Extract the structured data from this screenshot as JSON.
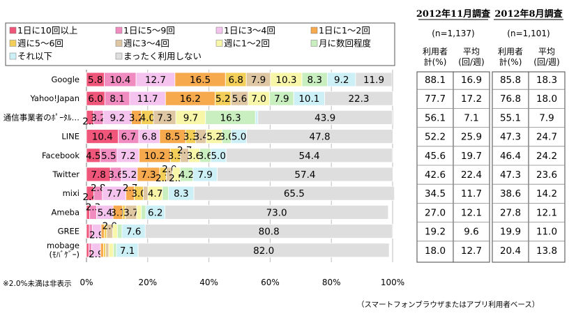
{
  "chart_data": {
    "type": "bar",
    "orientation": "horizontal",
    "stacked": true,
    "xlim": [
      0,
      100
    ],
    "x_ticks": [
      "0%",
      "20%",
      "40%",
      "60%",
      "80%",
      "100%"
    ],
    "grid": true,
    "legend_position": "top-left",
    "categories": [
      "Google",
      "Yahoo!Japan",
      "通信事業者のﾎﾟｰﾀﾙ…",
      "LINE",
      "Facebook",
      "Twitter",
      "mixi",
      "Ameba",
      "GREE",
      "mobage\n(ﾓﾊﾞｹﾞｰ)"
    ],
    "series": [
      {
        "name": "1日に10回以上",
        "color": "#f0557a",
        "values": [
          5.8,
          6.0,
          2.3,
          10.4,
          4.5,
          7.8,
          2.4,
          1.0,
          0.9,
          0.8
        ],
        "labels": [
          "5.8",
          "6.0",
          "2.3",
          "10.4",
          "4.5",
          "7.8",
          "2.4",
          "",
          "",
          ""
        ]
      },
      {
        "name": "1日に5～9回",
        "color": "#f08cc0",
        "values": [
          10.4,
          8.1,
          3.2,
          6.7,
          5.5,
          3.6,
          2.8,
          2.3,
          1.0,
          0.9
        ],
        "labels": [
          "10.4",
          "8.1",
          "3.2",
          "6.7",
          "5.5",
          "3.6",
          "2.8",
          "2.3",
          "",
          ""
        ]
      },
      {
        "name": "1日に3～4回",
        "color": "#f4c4ee",
        "values": [
          12.7,
          11.7,
          9.2,
          6.8,
          7.2,
          5.2,
          7.7,
          5.4,
          2.9,
          2.9
        ],
        "labels": [
          "12.7",
          "11.7",
          "9.2",
          "6.8",
          "7.2",
          "5.2",
          "7.7",
          "5.4",
          "2.9",
          "2.9"
        ]
      },
      {
        "name": "1日に1～2回",
        "color": "#f7a94e",
        "values": [
          16.5,
          16.2,
          3.2,
          8.5,
          10.2,
          7.3,
          2.7,
          3.1,
          1.0,
          1.0
        ],
        "labels": [
          "16.5",
          "16.2",
          "3.2",
          "8.5",
          "10.2",
          "7.3",
          "2.7",
          "3.1",
          "",
          ""
        ]
      },
      {
        "name": "週に5～6回",
        "color": "#f3cf5a",
        "values": [
          6.8,
          5.2,
          4.0,
          3.3,
          3.3,
          2.2,
          3.0,
          0.9,
          0.8,
          0.7
        ],
        "labels": [
          "6.8",
          "5.2",
          "4.0",
          "3.3",
          "3.3",
          "2.2",
          "3.0",
          "",
          "",
          ""
        ]
      },
      {
        "name": "週に3～4回",
        "color": "#dfc7a4",
        "values": [
          7.9,
          5.6,
          7.3,
          3.4,
          2.7,
          2.0,
          1.5,
          3.7,
          2.0,
          1.0
        ],
        "labels": [
          "7.9",
          "5.6",
          "7.3",
          "3.4",
          "2.7",
          "2.0",
          "",
          "3.7",
          "2.0",
          ""
        ]
      },
      {
        "name": "週に1～2回",
        "color": "#f8f6a8",
        "values": [
          10.3,
          7.0,
          9.7,
          5.2,
          3.6,
          2.5,
          4.7,
          1.5,
          1.5,
          1.5
        ],
        "labels": [
          "10.3",
          "7.0",
          "9.7",
          "5.2",
          "3.6",
          "2.5",
          "4.7",
          "",
          "",
          ""
        ]
      },
      {
        "name": "月に数回程度",
        "color": "#c9eec0",
        "values": [
          8.3,
          7.9,
          16.3,
          3.0,
          3.6,
          4.2,
          2.0,
          1.5,
          1.5,
          1.0
        ],
        "labels": [
          "8.3",
          "7.9",
          "16.3",
          "3.0",
          "3.6",
          "4.2",
          "",
          "",
          "",
          ""
        ]
      },
      {
        "name": "それ以下",
        "color": "#cdf0f7",
        "values": [
          9.2,
          10.1,
          0.8,
          5.0,
          5.0,
          7.9,
          8.3,
          6.2,
          7.6,
          7.1
        ],
        "labels": [
          "9.2",
          "10.1",
          "",
          "5.0",
          "5.0",
          "7.9",
          "8.3",
          "6.2",
          "7.6",
          "7.1"
        ]
      },
      {
        "name": "まったく利用しない",
        "color": "#dedede",
        "values": [
          11.9,
          22.3,
          43.9,
          47.8,
          54.4,
          57.4,
          65.5,
          73.0,
          80.8,
          82.0
        ],
        "labels": [
          "11.9",
          "22.3",
          "43.9",
          "47.8",
          "54.4",
          "57.4",
          "65.5",
          "73.0",
          "80.8",
          "82.0"
        ]
      }
    ]
  },
  "tables": [
    {
      "title": "2012年11月調査",
      "n": "(n=1,137)",
      "col_headers": [
        [
          "利用者",
          "計(%)"
        ],
        [
          "平均",
          "(回/週)"
        ]
      ],
      "rows": [
        [
          "88.1",
          "16.9"
        ],
        [
          "77.7",
          "17.2"
        ],
        [
          "56.1",
          "7.1"
        ],
        [
          "52.2",
          "25.9"
        ],
        [
          "45.6",
          "19.7"
        ],
        [
          "42.6",
          "22.4"
        ],
        [
          "34.5",
          "11.7"
        ],
        [
          "27.0",
          "12.1"
        ],
        [
          "19.2",
          "9.6"
        ],
        [
          "18.0",
          "12.7"
        ]
      ]
    },
    {
      "title": "2012年8月調査",
      "n": "(n=1,101)",
      "col_headers": [
        [
          "利用者",
          "計(%)"
        ],
        [
          "平均",
          "(回/週)"
        ]
      ],
      "rows": [
        [
          "85.8",
          "18.3"
        ],
        [
          "76.8",
          "18.0"
        ],
        [
          "55.1",
          "7.9"
        ],
        [
          "47.3",
          "24.7"
        ],
        [
          "46.4",
          "24.2"
        ],
        [
          "47.3",
          "23.6"
        ],
        [
          "38.6",
          "14.2"
        ],
        [
          "27.8",
          "12.1"
        ],
        [
          "19.9",
          "11.0"
        ],
        [
          "20.4",
          "13.8"
        ]
      ]
    }
  ],
  "footnote_left": "※2.0%未満は非表示",
  "footnote_right": "（スマートフォンブラウザまたはアプリ利用者ベース）"
}
